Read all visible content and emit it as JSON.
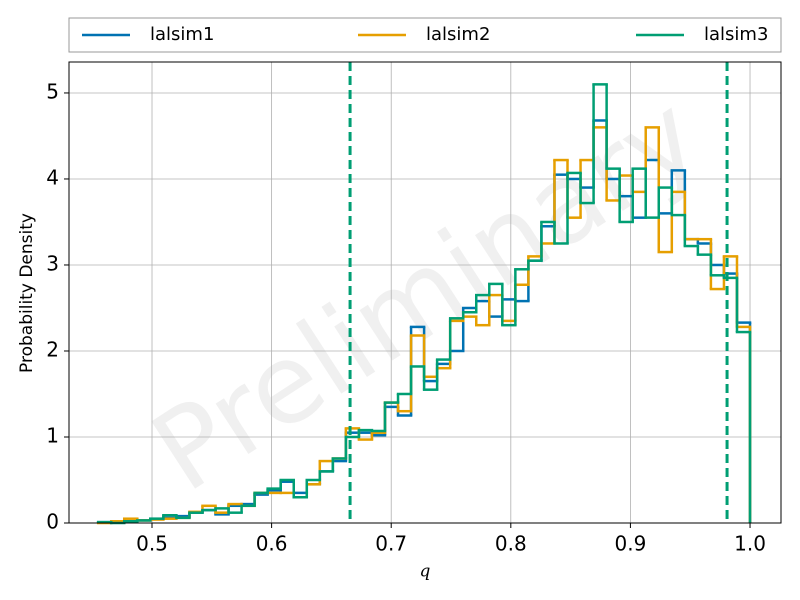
{
  "chart_data": {
    "type": "step_histogram",
    "xlabel": "q",
    "ylabel": "Probability Density",
    "watermark": "Preliminary",
    "legend": "top",
    "grid": true,
    "xlim": [
      0.4306,
      1.0259
    ],
    "ylim": [
      0,
      5.36
    ],
    "xticks": [
      0.5,
      0.6,
      0.7,
      0.8,
      0.9,
      {
        "value": 1,
        "label": "1.0"
      }
    ],
    "yticks": [
      0,
      1,
      2,
      3,
      4,
      5
    ],
    "bins": [
      0.455,
      0.4659,
      0.4768,
      0.4877,
      0.4986,
      0.5095,
      0.5204,
      0.5313,
      0.5422,
      0.5531,
      0.564,
      0.5749,
      0.5858,
      0.5967,
      0.6076,
      0.6185,
      0.6294,
      0.6403,
      0.6512,
      0.6621,
      0.673,
      0.6839,
      0.6948,
      0.7057,
      0.7166,
      0.7275,
      0.7384,
      0.7493,
      0.7602,
      0.7711,
      0.782,
      0.7929,
      0.8038,
      0.8147,
      0.8256,
      0.8365,
      0.8474,
      0.8583,
      0.8692,
      0.8801,
      0.891,
      0.9019,
      0.9128,
      0.9237,
      0.9346,
      0.9455,
      0.9564,
      0.9673,
      0.9782,
      0.9891,
      1.0
    ],
    "series": [
      {
        "name": "lalsim1",
        "color": "#0072b2",
        "values": [
          0.01,
          0.01,
          0.02,
          0.03,
          0.05,
          0.06,
          0.08,
          0.12,
          0.15,
          0.1,
          0.2,
          0.22,
          0.33,
          0.38,
          0.48,
          0.35,
          0.45,
          0.6,
          0.72,
          1.05,
          1.05,
          1.02,
          1.35,
          1.25,
          2.28,
          1.65,
          1.85,
          2.0,
          2.5,
          2.58,
          2.4,
          2.6,
          2.58,
          3.05,
          3.45,
          4.05,
          4.0,
          3.9,
          4.68,
          4.0,
          3.8,
          3.55,
          4.22,
          3.6,
          4.1,
          3.3,
          3.25,
          3.0,
          2.9,
          2.33
        ]
      },
      {
        "name": "lalsim2",
        "color": "#e69f00",
        "values": [
          0,
          0.02,
          0.05,
          0.03,
          0.04,
          0.05,
          0.06,
          0.13,
          0.2,
          0.12,
          0.22,
          0.2,
          0.35,
          0.35,
          0.35,
          0.3,
          0.45,
          0.72,
          0.75,
          1.1,
          0.97,
          1.05,
          1.4,
          1.3,
          2.18,
          1.7,
          1.8,
          2.35,
          2.4,
          2.3,
          2.65,
          2.35,
          2.77,
          3.1,
          3.25,
          4.22,
          3.55,
          4.22,
          4.6,
          3.75,
          4.04,
          3.85,
          4.6,
          3.15,
          3.85,
          3.3,
          3.3,
          2.72,
          3.1,
          2.28
        ]
      },
      {
        "name": "lalsim3",
        "color": "#009e73",
        "values": [
          0.01,
          0,
          0.02,
          0.03,
          0.05,
          0.09,
          0.06,
          0.12,
          0.15,
          0.17,
          0.12,
          0.2,
          0.35,
          0.4,
          0.5,
          0.3,
          0.5,
          0.6,
          0.75,
          1.0,
          1.08,
          1.07,
          1.4,
          1.5,
          1.82,
          1.55,
          1.9,
          2.38,
          2.45,
          2.65,
          2.78,
          2.3,
          2.95,
          3.05,
          3.5,
          3.25,
          4.07,
          3.72,
          5.1,
          4.12,
          3.5,
          4.12,
          3.55,
          3.9,
          3.58,
          3.22,
          3.12,
          2.88,
          2.85,
          2.22
        ]
      }
    ],
    "vlines": [
      {
        "value": 0.6656,
        "color": "#009e73"
      },
      {
        "value": 0.9808,
        "color": "#009e73"
      }
    ]
  }
}
